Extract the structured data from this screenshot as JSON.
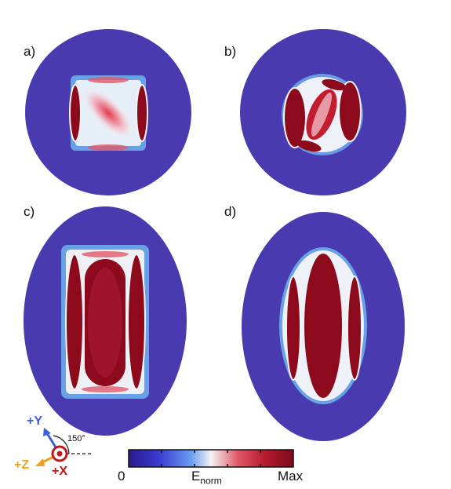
{
  "panels": [
    {
      "label": "a)"
    },
    {
      "label": "b)"
    },
    {
      "label": "c)"
    },
    {
      "label": "d)"
    }
  ],
  "colorbar": {
    "min_label": "0",
    "max_label": "Max",
    "quantity": "E",
    "quantity_sub": "norm",
    "colors": [
      "#2a1a8a",
      "#3a3ad0",
      "#6a9cf0",
      "#f4f4f4",
      "#e05a6a",
      "#b81c30",
      "#7a0a1a"
    ]
  },
  "axes_indicator": {
    "y_label": "+Y",
    "z_label": "+Z",
    "x_label": "+X",
    "angle": "150°",
    "y_color": "#3b5fd8",
    "z_color": "#f0a020",
    "x_color": "#c01818"
  },
  "field_colors": {
    "background_blue": "#4a3ab0",
    "dark_red": "#8c0a1c",
    "white": "#f4f2f6",
    "light_blue": "#6fb4f0"
  }
}
